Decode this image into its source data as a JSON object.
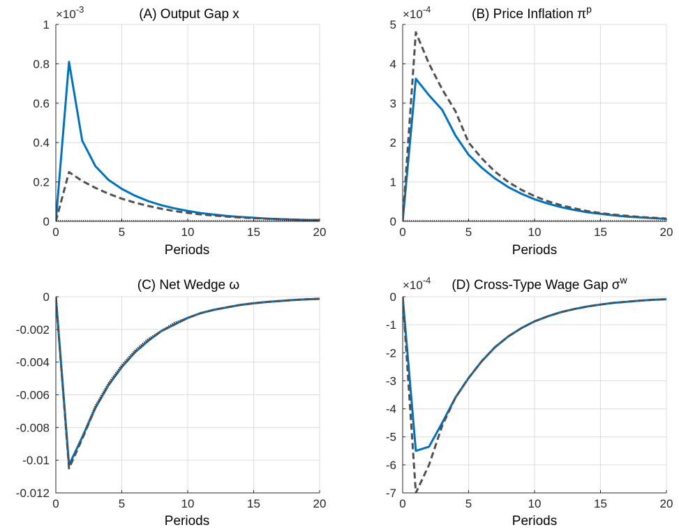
{
  "colors": {
    "solid": "#0072bd",
    "dashed": "#505050",
    "dotted": "#000000"
  },
  "chart_data": [
    {
      "type": "line",
      "title": "(A) Output Gap x",
      "xlabel": "Periods",
      "exponent_label": "×10",
      "exponent_power": "-3",
      "xlim": [
        0,
        20
      ],
      "ylim": [
        0,
        1
      ],
      "xticks": [
        "0",
        "5",
        "10",
        "15",
        "20"
      ],
      "yticks": [
        "0",
        "0.2",
        "0.4",
        "0.6",
        "0.8",
        "1"
      ],
      "x": [
        0,
        1,
        2,
        3,
        4,
        5,
        6,
        7,
        8,
        9,
        10,
        11,
        12,
        13,
        14,
        15,
        16,
        17,
        18,
        19,
        20
      ],
      "series": [
        {
          "style": "solid",
          "values": [
            0,
            0.81,
            0.41,
            0.28,
            0.21,
            0.165,
            0.13,
            0.103,
            0.082,
            0.066,
            0.053,
            0.042,
            0.034,
            0.027,
            0.022,
            0.018,
            0.014,
            0.011,
            0.009,
            0.007,
            0.006
          ]
        },
        {
          "style": "dashed",
          "values": [
            0,
            0.25,
            0.205,
            0.17,
            0.14,
            0.115,
            0.095,
            0.078,
            0.064,
            0.052,
            0.043,
            0.035,
            0.029,
            0.024,
            0.019,
            0.016,
            0.013,
            0.011,
            0.009,
            0.007,
            0.006
          ]
        },
        {
          "style": "dotted",
          "values": [
            0,
            0,
            0,
            0,
            0,
            0,
            0,
            0,
            0,
            0,
            0,
            0,
            0,
            0,
            0,
            0,
            0,
            0,
            0,
            0,
            0
          ]
        }
      ]
    },
    {
      "type": "line",
      "title": "(B) Price Inflation π",
      "title_sup": "p",
      "xlabel": "Periods",
      "exponent_label": "×10",
      "exponent_power": "-4",
      "xlim": [
        0,
        20
      ],
      "ylim": [
        0,
        5
      ],
      "xticks": [
        "0",
        "5",
        "10",
        "15",
        "20"
      ],
      "yticks": [
        "0",
        "1",
        "2",
        "3",
        "4",
        "5"
      ],
      "x": [
        0,
        1,
        2,
        3,
        4,
        5,
        6,
        7,
        8,
        9,
        10,
        11,
        12,
        13,
        14,
        15,
        16,
        17,
        18,
        19,
        20
      ],
      "series": [
        {
          "style": "solid",
          "values": [
            0,
            3.62,
            3.2,
            2.83,
            2.18,
            1.69,
            1.36,
            1.09,
            0.87,
            0.7,
            0.56,
            0.45,
            0.36,
            0.29,
            0.23,
            0.19,
            0.15,
            0.12,
            0.1,
            0.08,
            0.06
          ]
        },
        {
          "style": "dashed",
          "values": [
            0,
            4.8,
            4.0,
            3.35,
            2.8,
            2.0,
            1.6,
            1.26,
            1.0,
            0.8,
            0.64,
            0.51,
            0.41,
            0.33,
            0.26,
            0.21,
            0.17,
            0.14,
            0.11,
            0.09,
            0.07
          ]
        },
        {
          "style": "dotted",
          "values": [
            0,
            0,
            0,
            0,
            0,
            0,
            0,
            0,
            0,
            0,
            0,
            0,
            0,
            0,
            0,
            0,
            0,
            0,
            0,
            0,
            0
          ]
        }
      ]
    },
    {
      "type": "line",
      "title": "(C) Net Wedge ω",
      "xlabel": "Periods",
      "xlim": [
        0,
        20
      ],
      "ylim": [
        -0.012,
        0
      ],
      "xticks": [
        "0",
        "5",
        "10",
        "15",
        "20"
      ],
      "yticks": [
        "-0.012",
        "-0.01",
        "-0.008",
        "-0.006",
        "-0.004",
        "-0.002",
        "0"
      ],
      "x": [
        0,
        1,
        2,
        3,
        4,
        5,
        6,
        7,
        8,
        9,
        10,
        11,
        12,
        13,
        14,
        15,
        16,
        17,
        18,
        19,
        20
      ],
      "series": [
        {
          "style": "dotted",
          "values": [
            0,
            -0.0103,
            -0.0086,
            -0.0067,
            -0.0053,
            -0.0042,
            -0.0033,
            -0.0026,
            -0.0021,
            -0.0016,
            -0.0013,
            -0.001,
            -0.0008,
            -0.00064,
            -0.0005,
            -0.0004,
            -0.00032,
            -0.00026,
            -0.0002,
            -0.00016,
            -0.00013
          ]
        },
        {
          "style": "solid",
          "values": [
            0,
            -0.0103,
            -0.0086,
            -0.0068,
            -0.0054,
            -0.0043,
            -0.0034,
            -0.0027,
            -0.0021,
            -0.0017,
            -0.0013,
            -0.001,
            -0.0008,
            -0.00065,
            -0.0005,
            -0.0004,
            -0.00032,
            -0.00026,
            -0.0002,
            -0.00016,
            -0.00013
          ]
        },
        {
          "style": "dashed",
          "values": [
            0,
            -0.0105,
            -0.0087,
            -0.0068,
            -0.0054,
            -0.0043,
            -0.0034,
            -0.0027,
            -0.0021,
            -0.0017,
            -0.0013,
            -0.001,
            -0.0008,
            -0.00065,
            -0.0005,
            -0.0004,
            -0.00032,
            -0.00026,
            -0.0002,
            -0.00016,
            -0.00013
          ]
        }
      ]
    },
    {
      "type": "line",
      "title": "(D) Cross-Type Wage Gap σ",
      "title_sup": "w",
      "xlabel": "Periods",
      "exponent_label": "×10",
      "exponent_power": "-4",
      "xlim": [
        0,
        20
      ],
      "ylim": [
        -7,
        0
      ],
      "xticks": [
        "0",
        "5",
        "10",
        "15",
        "20"
      ],
      "yticks": [
        "-7",
        "-6",
        "-5",
        "-4",
        "-3",
        "-2",
        "-1",
        "0"
      ],
      "x": [
        0,
        1,
        2,
        3,
        4,
        5,
        6,
        7,
        8,
        9,
        10,
        11,
        12,
        13,
        14,
        15,
        16,
        17,
        18,
        19,
        20
      ],
      "series": [
        {
          "style": "solid",
          "values": [
            0,
            -5.5,
            -5.35,
            -4.5,
            -3.6,
            -2.9,
            -2.3,
            -1.8,
            -1.42,
            -1.12,
            -0.88,
            -0.7,
            -0.55,
            -0.44,
            -0.35,
            -0.28,
            -0.22,
            -0.18,
            -0.14,
            -0.11,
            -0.09
          ]
        },
        {
          "style": "dashed",
          "values": [
            0,
            -7.0,
            -6.0,
            -4.6,
            -3.6,
            -2.9,
            -2.3,
            -1.8,
            -1.42,
            -1.12,
            -0.88,
            -0.7,
            -0.55,
            -0.44,
            -0.35,
            -0.28,
            -0.22,
            -0.18,
            -0.14,
            -0.11,
            -0.09
          ]
        }
      ]
    }
  ]
}
